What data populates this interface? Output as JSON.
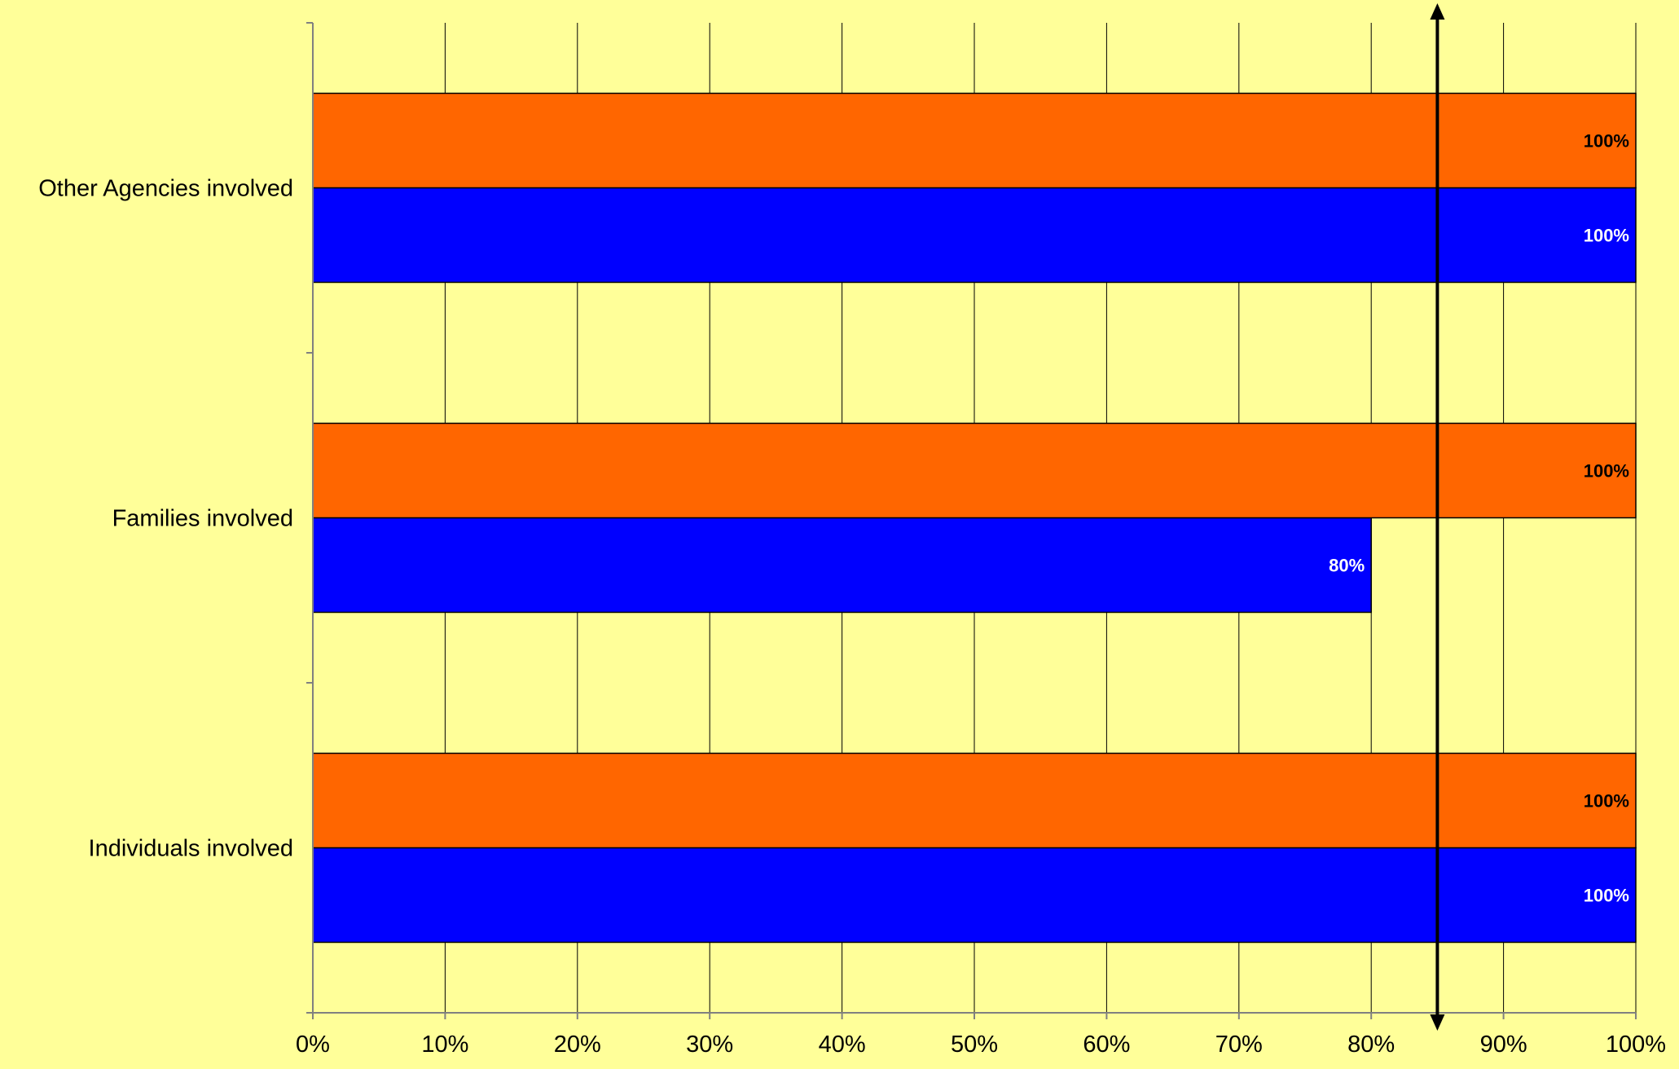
{
  "chart_data": {
    "type": "bar",
    "orientation": "horizontal",
    "categories": [
      "Individuals involved",
      "Families involved",
      "Other Agencies involved"
    ],
    "series": [
      {
        "values": [
          100,
          80,
          100
        ],
        "color": "#0000FF",
        "label_color": "#FFFFFF"
      },
      {
        "values": [
          100,
          100,
          100
        ],
        "color": "#FF6600",
        "label_color": "#000000"
      }
    ],
    "data_labels": [
      [
        "100%",
        "80%",
        "100%"
      ],
      [
        "100%",
        "100%",
        "100%"
      ]
    ],
    "x_ticks": [
      "0%",
      "10%",
      "20%",
      "30%",
      "40%",
      "50%",
      "60%",
      "70%",
      "80%",
      "90%",
      "100%"
    ],
    "xlim": [
      0,
      100
    ],
    "target_line": {
      "value": 85,
      "style": "vertical double-headed arrow"
    },
    "grid": "vertical",
    "legend": "none",
    "title": "",
    "xlabel": "",
    "ylabel": "",
    "colors": {
      "background": "#FFFF99",
      "gridline": "#000000",
      "axis": "#808080"
    }
  }
}
